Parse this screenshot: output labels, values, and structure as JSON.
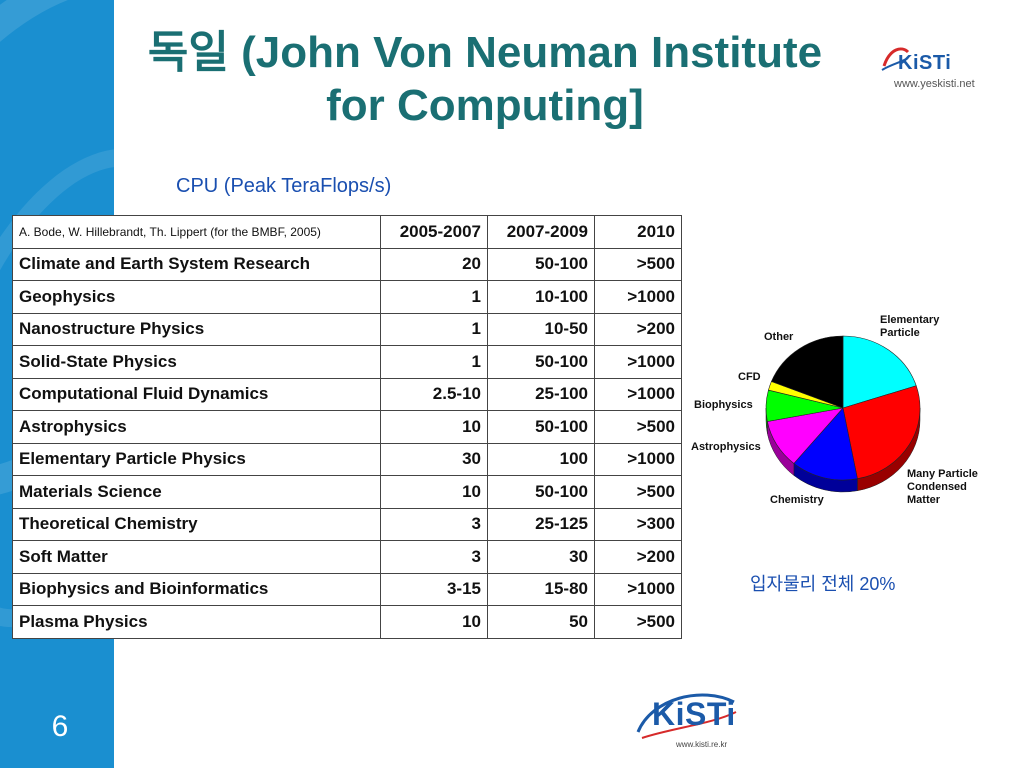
{
  "slide": {
    "title_line1": "독일 (John Von Neuman Institute",
    "title_line2": "for Computing]",
    "number": "6"
  },
  "logo_top": {
    "brand": "KiSTi",
    "url": "www.yeskisti.net"
  },
  "logo_bottom": {
    "brand": "KiSTi",
    "url": "www.kisti.re.kr"
  },
  "subtitle": "CPU (Peak TeraFlops/s)",
  "table": {
    "source": "A. Bode, W. Hillebrandt, Th. Lippert  (for the BMBF, 2005)",
    "columns": [
      "2005-2007",
      "2007-2009",
      "2010"
    ],
    "rows": [
      {
        "field": "Climate and Earth System Research",
        "v": [
          "20",
          "50-100",
          ">500"
        ]
      },
      {
        "field": "Geophysics",
        "v": [
          "1",
          "10-100",
          ">1000"
        ]
      },
      {
        "field": "Nanostructure Physics",
        "v": [
          "1",
          "10-50",
          ">200"
        ]
      },
      {
        "field": "Solid-State Physics",
        "v": [
          "1",
          "50-100",
          ">1000"
        ]
      },
      {
        "field": "Computational Fluid Dynamics",
        "v": [
          "2.5-10",
          "25-100",
          ">1000"
        ]
      },
      {
        "field": "Astrophysics",
        "v": [
          "10",
          "50-100",
          ">500"
        ]
      },
      {
        "field": "Elementary Particle Physics",
        "v": [
          "30",
          "100",
          ">1000"
        ]
      },
      {
        "field": "Materials Science",
        "v": [
          "10",
          "50-100",
          ">500"
        ]
      },
      {
        "field": "Theoretical Chemistry",
        "v": [
          "3",
          "25-125",
          ">300"
        ]
      },
      {
        "field": "Soft Matter",
        "v": [
          "3",
          "30",
          ">200"
        ]
      },
      {
        "field": "Biophysics and Bioinformatics",
        "v": [
          "3-15",
          "15-80",
          ">1000"
        ]
      },
      {
        "field": "Plasma Physics",
        "v": [
          "10",
          "50",
          ">500"
        ]
      }
    ]
  },
  "chart_data": {
    "type": "pie",
    "slices": [
      {
        "label": "Elementary Particle",
        "value": 20,
        "color": "#00ffff"
      },
      {
        "label": "Many Particle Condensed Matter",
        "value": 27,
        "color": "#ff0000"
      },
      {
        "label": "Chemistry",
        "value": 14,
        "color": "#0000ff"
      },
      {
        "label": "Astrophysics",
        "value": 11,
        "color": "#ff00ff"
      },
      {
        "label": "Biophysics",
        "value": 7,
        "color": "#00ff00"
      },
      {
        "label": "CFD",
        "value": 2,
        "color": "#ffff00"
      },
      {
        "label": "Other",
        "value": 19,
        "color": "#000000"
      }
    ],
    "label_lines": {
      "Elementary Particle": [
        "Elementary",
        "Particle"
      ],
      "Many Particle Condensed Matter": [
        "Many Particle",
        "Condensed",
        "Matter"
      ]
    }
  },
  "note": "입자물리 전체 20%",
  "colors": {
    "band": "#1a8fd0",
    "title": "#1a6f73",
    "text_blue": "#1a4fb0"
  }
}
